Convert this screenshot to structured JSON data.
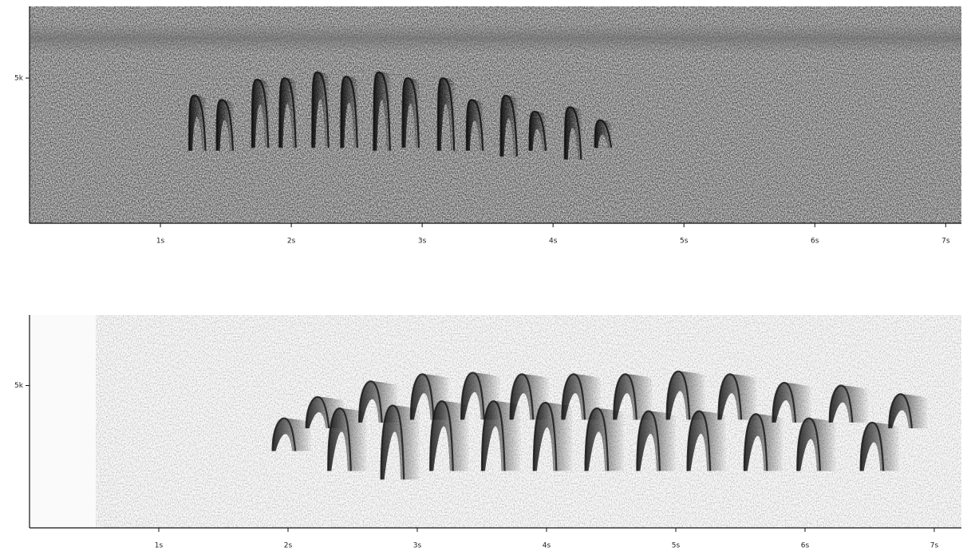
{
  "chart_data": [
    {
      "type": "spectrogram",
      "xlim": [
        0,
        7.12
      ],
      "ylim": [
        0,
        7470
      ],
      "xticks": [
        {
          "value": 1,
          "label": "1s"
        },
        {
          "value": 2,
          "label": "2s"
        },
        {
          "value": 3,
          "label": "3s"
        },
        {
          "value": 4,
          "label": "4s"
        },
        {
          "value": 5,
          "label": "5s"
        },
        {
          "value": 6,
          "label": "6s"
        },
        {
          "value": 7,
          "label": "7s"
        }
      ],
      "yticks": [
        {
          "value": 5000,
          "label": "5k"
        }
      ],
      "color": "#111111",
      "syllables": [
        {
          "t": 1.22,
          "high": 4400,
          "low": 2500
        },
        {
          "t": 1.43,
          "high": 4250,
          "low": 2500
        },
        {
          "t": 1.7,
          "high": 4950,
          "low": 2600
        },
        {
          "t": 1.91,
          "high": 5000,
          "low": 2600
        },
        {
          "t": 2.16,
          "high": 5200,
          "low": 2600
        },
        {
          "t": 2.38,
          "high": 5050,
          "low": 2600
        },
        {
          "t": 2.63,
          "high": 5200,
          "low": 2500
        },
        {
          "t": 2.85,
          "high": 5000,
          "low": 2600
        },
        {
          "t": 3.12,
          "high": 5000,
          "low": 2500
        },
        {
          "t": 3.34,
          "high": 4250,
          "low": 2500
        },
        {
          "t": 3.6,
          "high": 4400,
          "low": 2300
        },
        {
          "t": 3.82,
          "high": 3850,
          "low": 2500
        },
        {
          "t": 4.09,
          "high": 4000,
          "low": 2200
        },
        {
          "t": 4.32,
          "high": 3550,
          "low": 2600
        }
      ]
    },
    {
      "type": "spectrogram",
      "xlim": [
        0,
        7.21
      ],
      "ylim": [
        0,
        7480
      ],
      "xticks": [
        {
          "value": 1,
          "label": "1s"
        },
        {
          "value": 2,
          "label": "2s"
        },
        {
          "value": 3,
          "label": "3s"
        },
        {
          "value": 4,
          "label": "4s"
        },
        {
          "value": 5,
          "label": "5s"
        },
        {
          "value": 6,
          "label": "6s"
        },
        {
          "value": 7,
          "label": "7s"
        }
      ],
      "yticks": [
        {
          "value": 5000,
          "label": "5k"
        }
      ],
      "color": "#1a1a1a",
      "syllables": [
        {
          "t": 1.88,
          "high": 3850,
          "low": 2700
        },
        {
          "t": 2.14,
          "high": 4600,
          "low": 3500
        },
        {
          "t": 2.31,
          "high": 4200,
          "low": 2000
        },
        {
          "t": 2.55,
          "high": 5150,
          "low": 3700
        },
        {
          "t": 2.72,
          "high": 4300,
          "low": 1700
        },
        {
          "t": 2.95,
          "high": 5400,
          "low": 3800
        },
        {
          "t": 3.1,
          "high": 4450,
          "low": 2000
        },
        {
          "t": 3.34,
          "high": 5450,
          "low": 3800
        },
        {
          "t": 3.5,
          "high": 4450,
          "low": 2000
        },
        {
          "t": 3.72,
          "high": 5400,
          "low": 3800
        },
        {
          "t": 3.9,
          "high": 4400,
          "low": 2000
        },
        {
          "t": 4.12,
          "high": 5400,
          "low": 3800
        },
        {
          "t": 4.3,
          "high": 4200,
          "low": 2000
        },
        {
          "t": 4.52,
          "high": 5400,
          "low": 3800
        },
        {
          "t": 4.7,
          "high": 4100,
          "low": 2000
        },
        {
          "t": 4.93,
          "high": 5500,
          "low": 3800
        },
        {
          "t": 5.09,
          "high": 4100,
          "low": 2000
        },
        {
          "t": 5.33,
          "high": 5400,
          "low": 3800
        },
        {
          "t": 5.53,
          "high": 4000,
          "low": 2000
        },
        {
          "t": 5.75,
          "high": 5100,
          "low": 3700
        },
        {
          "t": 5.94,
          "high": 3850,
          "low": 2000
        },
        {
          "t": 6.19,
          "high": 5000,
          "low": 3700
        },
        {
          "t": 6.43,
          "high": 3700,
          "low": 2000
        },
        {
          "t": 6.65,
          "high": 4700,
          "low": 3500
        }
      ]
    }
  ]
}
